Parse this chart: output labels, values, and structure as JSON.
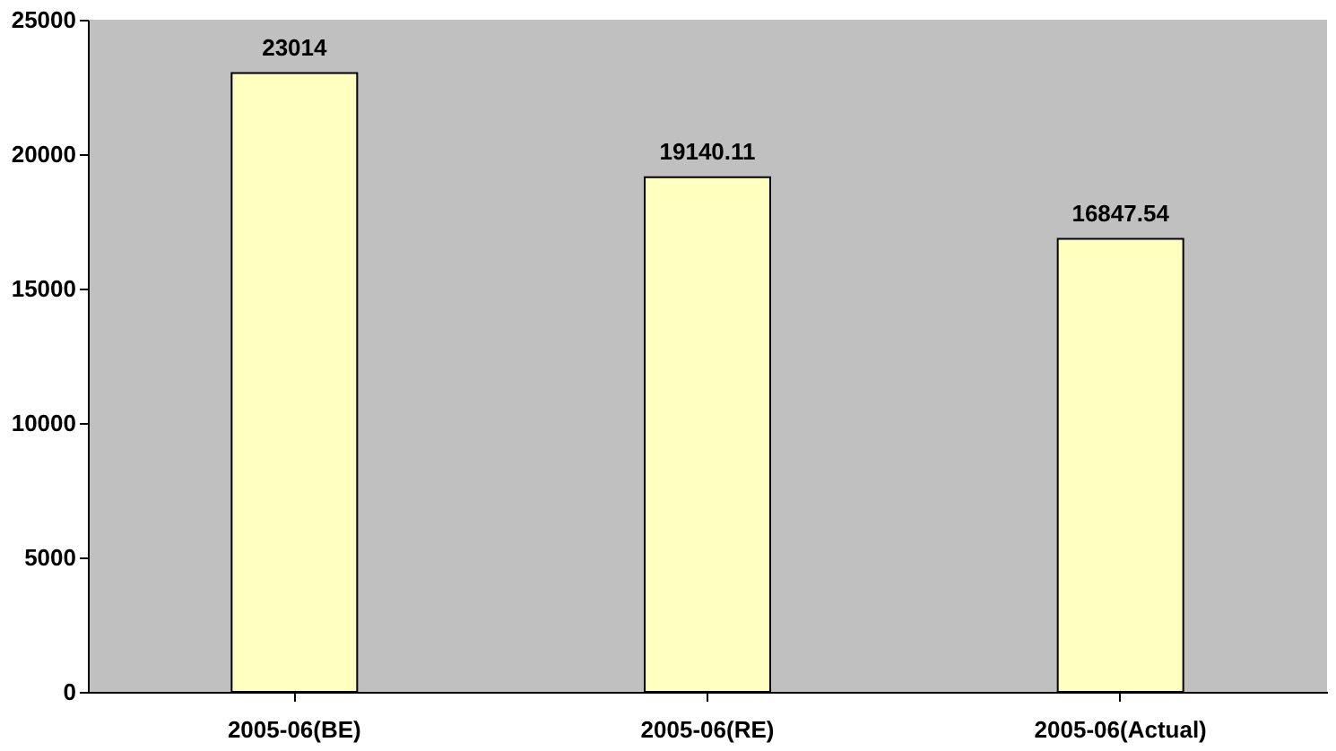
{
  "chart_data": {
    "type": "bar",
    "categories": [
      "2005-06(BE)",
      "2005-06(RE)",
      "2005-06(Actual)"
    ],
    "values": [
      23014,
      19140.11,
      16847.54
    ],
    "color": "#ffffc0",
    "ylim": [
      0,
      25000
    ],
    "yticks": [
      0,
      5000,
      10000,
      15000,
      20000,
      25000
    ],
    "data_labels": true,
    "grid": false
  }
}
